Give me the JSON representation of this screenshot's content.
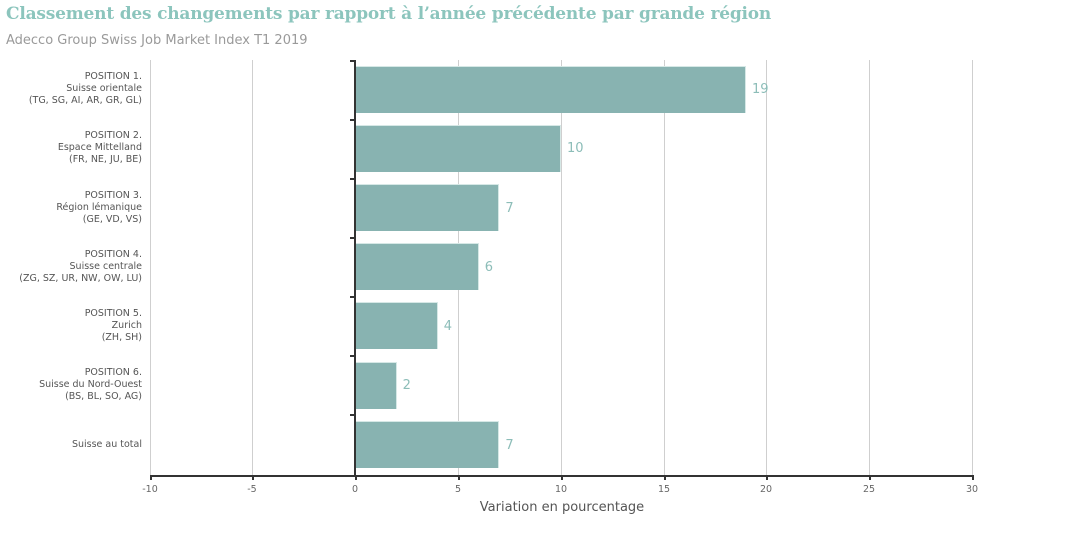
{
  "header": {
    "title": "Classement des changements par rapport à l’année précédente par grande région",
    "subtitle": "Adecco Group Swiss Job Market Index T1 2019"
  },
  "chart_data": {
    "type": "bar",
    "orientation": "horizontal",
    "title": "Classement des changements par rapport à l’année précédente par grande région",
    "subtitle": "Adecco Group Swiss Job Market Index T1 2019",
    "xlabel": "Variation en pourcentage",
    "ylabel": "",
    "xlim": [
      -10,
      30
    ],
    "xticks": [
      "-10",
      "-5",
      "0",
      "5",
      "10",
      "15",
      "20",
      "25",
      "30"
    ],
    "grid": true,
    "legend": null,
    "bar_color": "#88b3b1",
    "categories": [
      {
        "line1": "POSITION 1.",
        "line2": "Suisse orientale",
        "line3": "(TG, SG, AI, AR, GR, GL)"
      },
      {
        "line1": "POSITION 2.",
        "line2": "Espace Mittelland",
        "line3": "(FR, NE, JU, BE)"
      },
      {
        "line1": "POSITION 3.",
        "line2": "Région lémanique",
        "line3": "(GE, VD, VS)"
      },
      {
        "line1": "POSITION 4.",
        "line2": "Suisse centrale",
        "line3": "(ZG, SZ, UR, NW, OW, LU)"
      },
      {
        "line1": "POSITION 5.",
        "line2": "Zurich",
        "line3": "(ZH, SH)"
      },
      {
        "line1": "POSITION 6.",
        "line2": "Suisse du Nord-Ouest",
        "line3": "(BS, BL, SO, AG)"
      },
      {
        "line1": "",
        "line2": "Suisse au total",
        "line3": ""
      }
    ],
    "values": [
      19,
      10,
      7,
      6,
      4,
      2,
      7
    ],
    "value_labels": [
      "19",
      "10",
      "7",
      "6",
      "4",
      "2",
      "7"
    ]
  }
}
